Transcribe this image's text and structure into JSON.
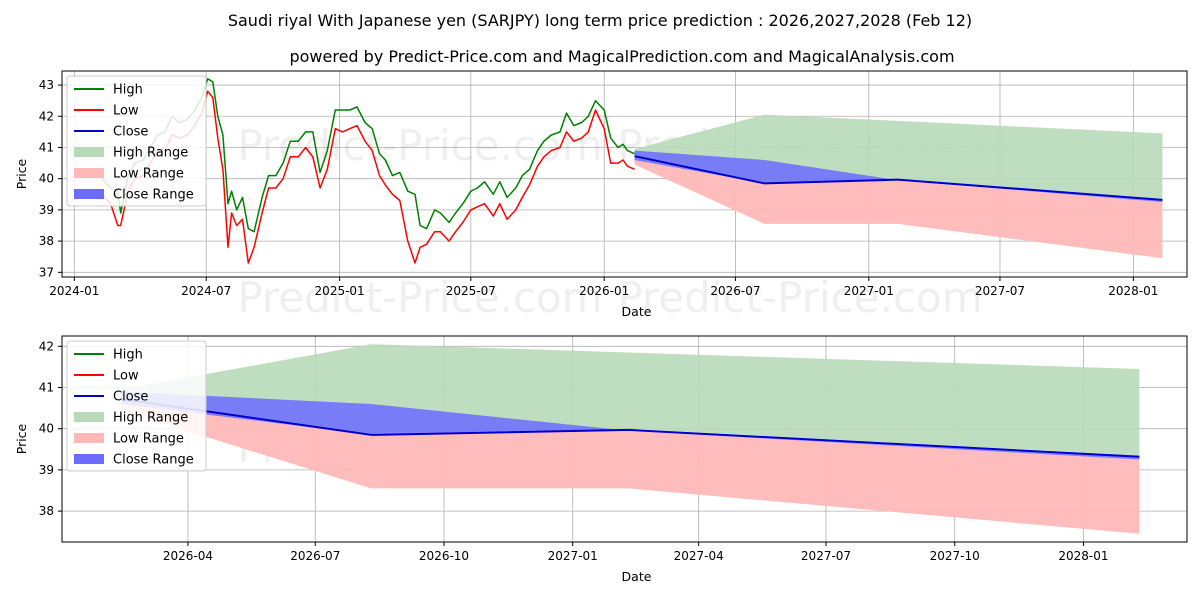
{
  "title": "Saudi riyal With Japanese yen (SARJPY) long term price prediction : 2026,2027,2028 (Feb 12)",
  "subtitle": "powered by Predict-Price.com and MagicalPrediction.com and MagicalAnalysis.com",
  "watermark": "Predict-Price.com",
  "colors": {
    "high": "#008000",
    "low": "#ff0000",
    "close": "#0000cd",
    "high_range": "#b8dab8",
    "low_range": "#ffb8b8",
    "close_range": "#6b6bff",
    "grid": "#b0b0b0"
  },
  "chart_data": [
    {
      "type": "line",
      "panel": "top",
      "xlabel": "Date",
      "ylabel": "Price",
      "xlim": [
        "2023-12-15",
        "2028-03-15"
      ],
      "ylim": [
        36.85,
        43.45
      ],
      "xticks": [
        {
          "date": "2024-01-01",
          "label": "2024-01"
        },
        {
          "date": "2024-07-01",
          "label": "2024-07"
        },
        {
          "date": "2025-01-01",
          "label": "2025-01"
        },
        {
          "date": "2025-07-01",
          "label": "2025-07"
        },
        {
          "date": "2026-01-01",
          "label": "2026-01"
        },
        {
          "date": "2026-07-01",
          "label": "2026-07"
        },
        {
          "date": "2027-01-01",
          "label": "2027-01"
        },
        {
          "date": "2027-07-01",
          "label": "2027-07"
        },
        {
          "date": "2028-01-01",
          "label": "2028-01"
        }
      ],
      "yticks": [
        37,
        38,
        39,
        40,
        41,
        42,
        43
      ],
      "legend": {
        "position": "top-left",
        "entries": [
          {
            "label": "High",
            "kind": "line",
            "color": "#008000"
          },
          {
            "label": "Low",
            "kind": "line",
            "color": "#ff0000"
          },
          {
            "label": "Close",
            "kind": "line",
            "color": "#0000cd"
          },
          {
            "label": "High Range",
            "kind": "patch",
            "color": "#b8dab8"
          },
          {
            "label": "Low Range",
            "kind": "patch",
            "color": "#ffb8b8"
          },
          {
            "label": "Close Range",
            "kind": "patch",
            "color": "#6b6bff"
          }
        ]
      },
      "history": {
        "dates": [
          "2024-02-08",
          "2024-02-20",
          "2024-03-01",
          "2024-03-05",
          "2024-03-15",
          "2024-03-25",
          "2024-04-05",
          "2024-04-15",
          "2024-04-25",
          "2024-05-05",
          "2024-05-15",
          "2024-05-25",
          "2024-06-05",
          "2024-06-15",
          "2024-06-25",
          "2024-07-03",
          "2024-07-10",
          "2024-07-17",
          "2024-07-24",
          "2024-07-31",
          "2024-08-05",
          "2024-08-12",
          "2024-08-20",
          "2024-08-28",
          "2024-09-05",
          "2024-09-16",
          "2024-09-25",
          "2024-10-05",
          "2024-10-15",
          "2024-10-25",
          "2024-11-05",
          "2024-11-15",
          "2024-11-25",
          "2024-12-05",
          "2024-12-15",
          "2024-12-26",
          "2025-01-05",
          "2025-01-15",
          "2025-01-25",
          "2025-02-05",
          "2025-02-15",
          "2025-02-25",
          "2025-03-05",
          "2025-03-15",
          "2025-03-25",
          "2025-04-05",
          "2025-04-15",
          "2025-04-22",
          "2025-05-01",
          "2025-05-12",
          "2025-05-20",
          "2025-06-01",
          "2025-06-10",
          "2025-06-20",
          "2025-07-01",
          "2025-07-10",
          "2025-07-20",
          "2025-08-01",
          "2025-08-10",
          "2025-08-20",
          "2025-09-01",
          "2025-09-10",
          "2025-09-20",
          "2025-10-01",
          "2025-10-10",
          "2025-10-20",
          "2025-11-01",
          "2025-11-10",
          "2025-11-20",
          "2025-12-01",
          "2025-12-10",
          "2025-12-20",
          "2026-01-01",
          "2026-01-10",
          "2026-01-20",
          "2026-01-27",
          "2026-02-02",
          "2026-02-12"
        ],
        "high": [
          40.0,
          39.7,
          39.6,
          38.9,
          40.1,
          40.5,
          40.6,
          41.0,
          41.4,
          41.5,
          42.0,
          41.8,
          41.9,
          42.2,
          42.6,
          43.2,
          43.1,
          42.0,
          41.4,
          39.2,
          39.6,
          39.0,
          39.4,
          38.4,
          38.3,
          39.4,
          40.1,
          40.1,
          40.5,
          41.2,
          41.2,
          41.5,
          41.5,
          40.2,
          40.9,
          42.2,
          42.2,
          42.2,
          42.3,
          41.8,
          41.6,
          40.8,
          40.6,
          40.1,
          40.2,
          39.6,
          39.5,
          38.5,
          38.4,
          39.0,
          38.9,
          38.6,
          38.9,
          39.2,
          39.6,
          39.7,
          39.9,
          39.5,
          39.9,
          39.4,
          39.7,
          40.1,
          40.3,
          40.9,
          41.2,
          41.4,
          41.5,
          42.1,
          41.7,
          41.8,
          42.0,
          42.5,
          42.2,
          41.3,
          41.0,
          41.1,
          40.9,
          40.8
        ],
        "low": [
          39.5,
          39.2,
          38.5,
          38.5,
          39.6,
          40.0,
          40.1,
          40.5,
          40.9,
          40.9,
          41.4,
          41.3,
          41.4,
          41.7,
          42.1,
          42.8,
          42.6,
          41.3,
          40.3,
          37.8,
          38.9,
          38.5,
          38.7,
          37.3,
          37.8,
          38.9,
          39.7,
          39.7,
          40.0,
          40.7,
          40.7,
          41.0,
          40.7,
          39.7,
          40.3,
          41.6,
          41.5,
          41.6,
          41.7,
          41.2,
          40.9,
          40.1,
          39.8,
          39.5,
          39.3,
          38.0,
          37.3,
          37.8,
          37.9,
          38.3,
          38.3,
          38.0,
          38.3,
          38.6,
          39.0,
          39.1,
          39.2,
          38.8,
          39.2,
          38.7,
          39.0,
          39.4,
          39.8,
          40.4,
          40.7,
          40.9,
          41.0,
          41.5,
          41.2,
          41.3,
          41.5,
          42.2,
          41.6,
          40.5,
          40.5,
          40.6,
          40.4,
          40.3
        ]
      },
      "forecast": {
        "dates": [
          "2026-02-12",
          "2026-08-10",
          "2027-02-10",
          "2028-02-10"
        ],
        "high_range": {
          "upper": [
            40.95,
            42.05,
            41.85,
            41.45
          ],
          "lower": [
            40.55,
            39.9,
            40.0,
            39.35
          ]
        },
        "low_range": {
          "upper": [
            40.6,
            39.85,
            39.95,
            39.25
          ],
          "lower": [
            40.45,
            38.55,
            38.55,
            37.45
          ]
        },
        "close_range": {
          "upper": [
            40.9,
            40.6,
            39.95,
            39.35
          ],
          "lower": [
            40.6,
            39.85,
            39.95,
            39.25
          ]
        },
        "close": [
          40.72,
          39.85,
          39.97,
          39.32
        ]
      }
    },
    {
      "type": "line",
      "panel": "bottom",
      "xlabel": "Date",
      "ylabel": "Price",
      "xlim": [
        "2026-01-01",
        "2028-03-15"
      ],
      "ylim": [
        37.25,
        42.25
      ],
      "xticks": [
        {
          "date": "2026-04-01",
          "label": "2026-04"
        },
        {
          "date": "2026-07-01",
          "label": "2026-07"
        },
        {
          "date": "2026-10-01",
          "label": "2026-10"
        },
        {
          "date": "2027-01-01",
          "label": "2027-01"
        },
        {
          "date": "2027-04-01",
          "label": "2027-04"
        },
        {
          "date": "2027-07-01",
          "label": "2027-07"
        },
        {
          "date": "2027-10-01",
          "label": "2027-10"
        },
        {
          "date": "2028-01-01",
          "label": "2028-01"
        }
      ],
      "yticks": [
        38,
        39,
        40,
        41,
        42
      ],
      "legend": {
        "position": "top-left",
        "entries": [
          {
            "label": "High",
            "kind": "line",
            "color": "#008000"
          },
          {
            "label": "Low",
            "kind": "line",
            "color": "#ff0000"
          },
          {
            "label": "Close",
            "kind": "line",
            "color": "#0000cd"
          },
          {
            "label": "High Range",
            "kind": "patch",
            "color": "#b8dab8"
          },
          {
            "label": "Low Range",
            "kind": "patch",
            "color": "#ffb8b8"
          },
          {
            "label": "Close Range",
            "kind": "patch",
            "color": "#6b6bff"
          }
        ]
      },
      "forecast": {
        "dates": [
          "2026-02-12",
          "2026-08-10",
          "2027-02-10",
          "2028-02-10"
        ],
        "high_range": {
          "upper": [
            40.95,
            42.05,
            41.85,
            41.45
          ],
          "lower": [
            40.55,
            39.9,
            40.0,
            39.35
          ]
        },
        "low_range": {
          "upper": [
            40.6,
            39.85,
            39.95,
            39.25
          ],
          "lower": [
            40.45,
            38.55,
            38.55,
            37.45
          ]
        },
        "close_range": {
          "upper": [
            40.9,
            40.6,
            39.95,
            39.35
          ],
          "lower": [
            40.6,
            39.85,
            39.95,
            39.25
          ]
        },
        "close": [
          40.72,
          39.85,
          39.97,
          39.32
        ]
      }
    }
  ]
}
